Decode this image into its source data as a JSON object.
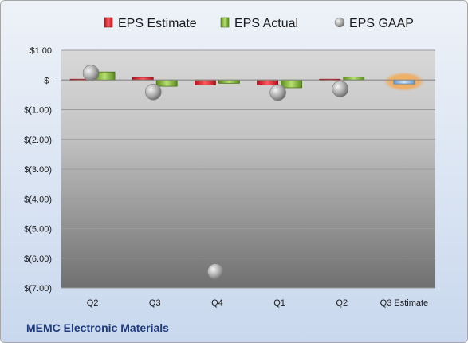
{
  "chart_data": {
    "type": "bar",
    "title": "",
    "footer": "MEMC Electronic Materials",
    "categories": [
      "Q2",
      "Q3",
      "Q4",
      "Q1",
      "Q2",
      "Q3 Estimate"
    ],
    "y_ticks": [
      1,
      0,
      -1,
      -2,
      -3,
      -4,
      -5,
      -6,
      -7
    ],
    "y_tick_labels": [
      "$1.00",
      "$-",
      "$(1.00)",
      "$(2.00)",
      "$(3.00)",
      "$(4.00)",
      "$(5.00)",
      "$(6.00)",
      "$(7.00)"
    ],
    "ylim": [
      -7,
      1
    ],
    "grid": true,
    "legend_position": "top",
    "legend": [
      "EPS Estimate",
      "EPS Actual",
      "EPS GAAP"
    ],
    "series": [
      {
        "name": "EPS Estimate",
        "type": "bar",
        "color": "#e8303a",
        "values": [
          0.03,
          0.09,
          -0.17,
          -0.17,
          -0.04,
          null
        ]
      },
      {
        "name": "EPS Actual",
        "type": "bar",
        "color": "#8fbe48",
        "values": [
          0.27,
          -0.21,
          -0.11,
          -0.26,
          0.1,
          null
        ]
      },
      {
        "name": "EPS GAAP",
        "type": "scatter",
        "color": "#a8a8a8",
        "values": [
          0.23,
          -0.4,
          -6.45,
          -0.42,
          -0.3,
          null
        ]
      },
      {
        "name": "Q3 Estimate",
        "type": "bar",
        "color": "#9ec4ea",
        "highlight": "#f5a54a",
        "values": [
          null,
          null,
          null,
          null,
          null,
          -0.13
        ]
      }
    ]
  }
}
